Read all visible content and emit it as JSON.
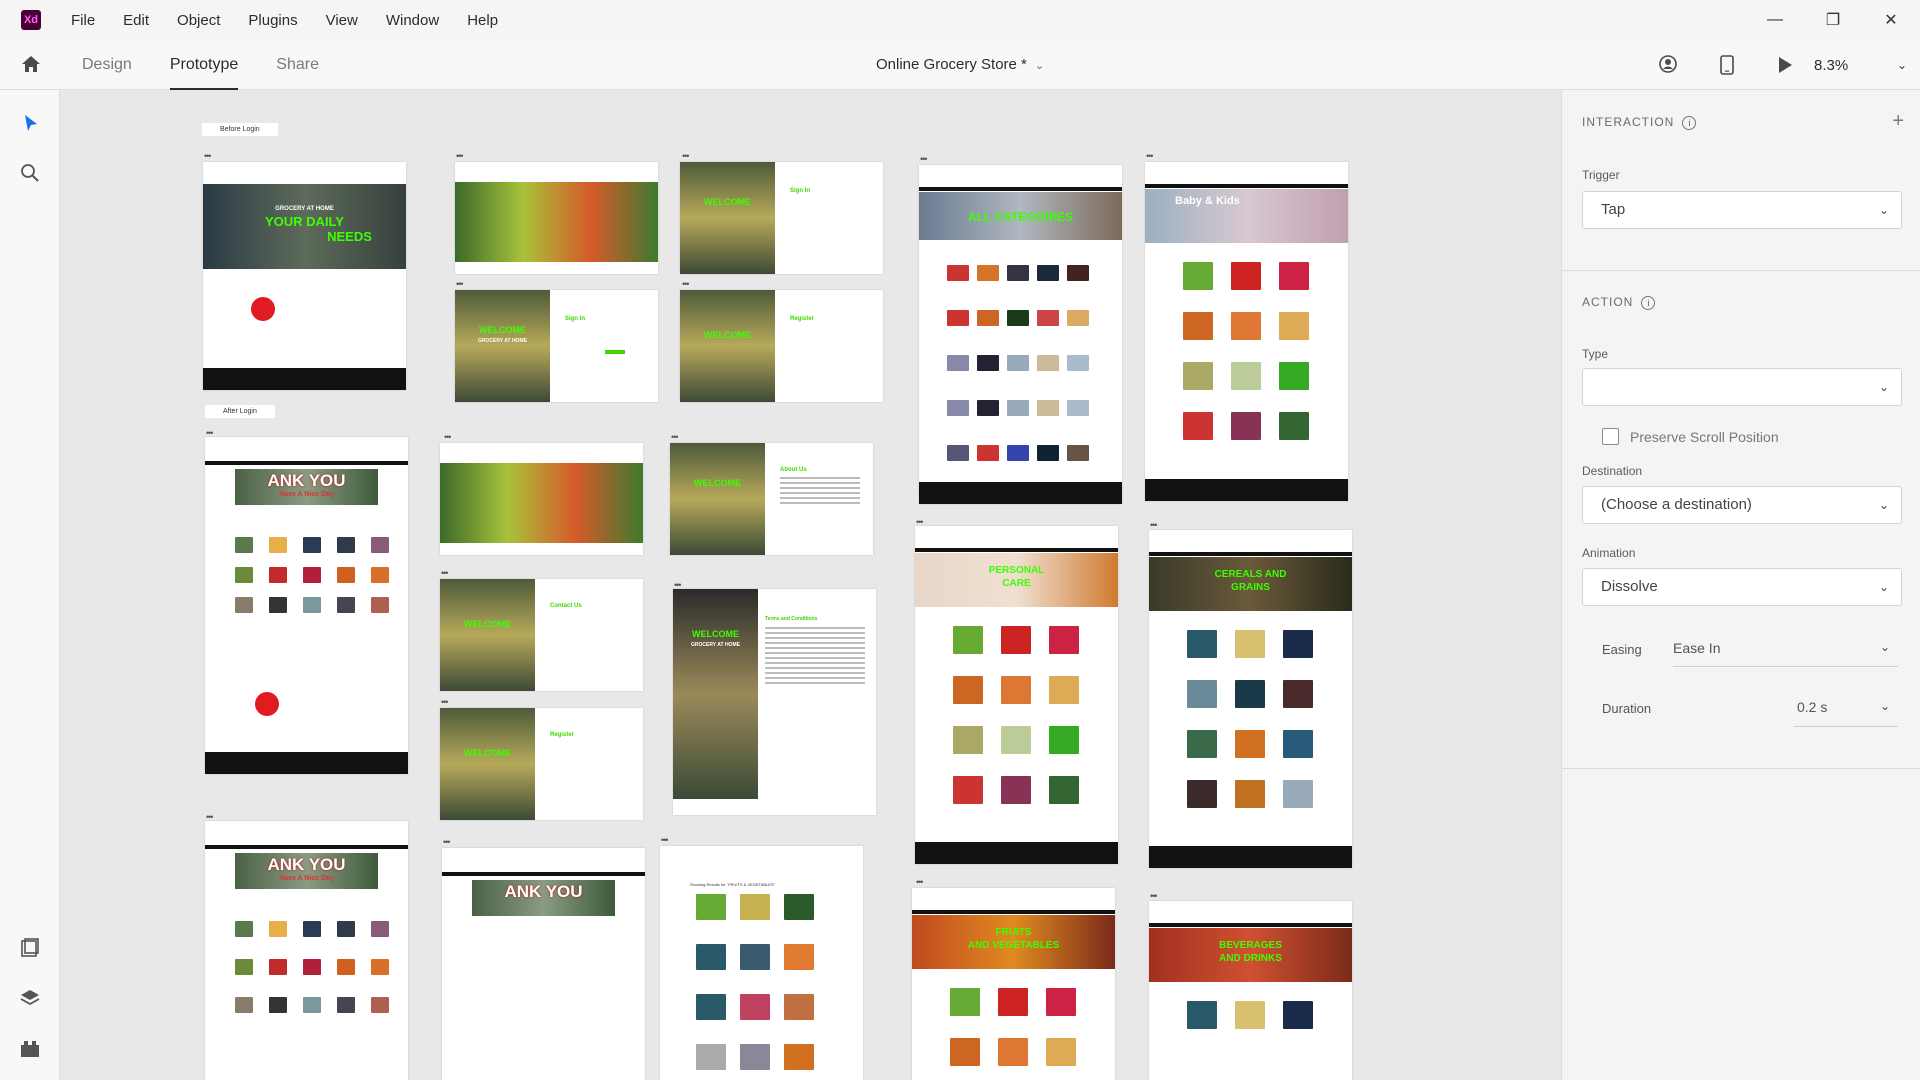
{
  "app": {
    "logo": "Xd",
    "menu": [
      "File",
      "Edit",
      "Object",
      "Plugins",
      "View",
      "Window",
      "Help"
    ],
    "window_controls": [
      "minimize-icon",
      "restore-icon",
      "close-icon"
    ]
  },
  "appbar": {
    "tabs": [
      "Design",
      "Prototype",
      "Share"
    ],
    "active_tab": "Prototype",
    "document_title": "Online Grocery Store *",
    "zoom": "8.3%"
  },
  "canvas": {
    "labels": {
      "before_login": "Before Login",
      "after_login": "After Login"
    },
    "artboards": {
      "home": {
        "line1": "GROCERY AT HOME",
        "line2": "YOUR DAILY",
        "line3": "NEEDS"
      },
      "signin": {
        "welcome": "WELCOME",
        "sub": "GROCERY AT HOME",
        "title": "Sign In"
      },
      "register": {
        "title": "Register"
      },
      "contact": {
        "title": "Contact Us"
      },
      "about": {
        "title": "About Us"
      },
      "terms": {
        "title": "Terms and Conditions"
      },
      "thankyou": {
        "line1": "ANK YOU",
        "line2": "Have A Nice Day"
      },
      "all_categories": {
        "title": "ALL CATEGORIES"
      },
      "baby_kids": {
        "title": "Baby & Kids"
      },
      "personal_care": {
        "line1": "PERSONAL",
        "line2": "CARE"
      },
      "cereals": {
        "line1": "CEREALS AND",
        "line2": "GRAINS"
      },
      "fruits_veg": {
        "line1": "FRUITS",
        "line2": "AND VEGETABLES"
      },
      "beverages": {
        "line1": "BEVERAGES",
        "line2": "AND DRINKS"
      },
      "search_results": {
        "title": "Showing Results for \"FRUITS & VEGETABLES\""
      }
    }
  },
  "panel": {
    "interaction_title": "INTERACTION",
    "trigger_label": "Trigger",
    "trigger_value": "Tap",
    "action_title": "ACTION",
    "type_label": "Type",
    "type_value": "",
    "preserve_scroll": "Preserve Scroll Position",
    "destination_label": "Destination",
    "destination_value": "(Choose a destination)",
    "animation_label": "Animation",
    "animation_value": "Dissolve",
    "easing_label": "Easing",
    "easing_value": "Ease In",
    "duration_label": "Duration",
    "duration_value": "0.2 s"
  }
}
